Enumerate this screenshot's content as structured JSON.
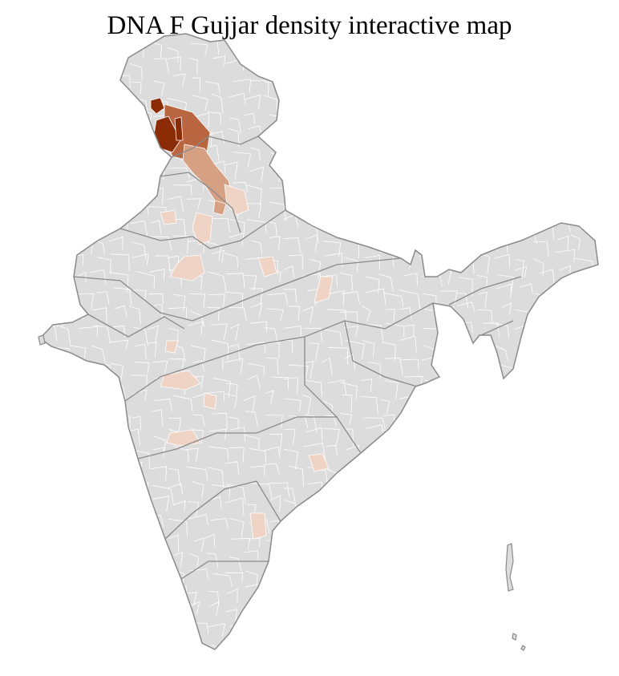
{
  "title": "DNA F Gujjar density interactive map",
  "colors": {
    "base": "#dcdcdc",
    "state_border": "#8a8a8a",
    "district_border": "#ffffff",
    "density_very_high": "#8b2c06",
    "density_high": "#b9653f",
    "density_medium": "#d6a083",
    "density_low": "#efd3c4"
  }
}
